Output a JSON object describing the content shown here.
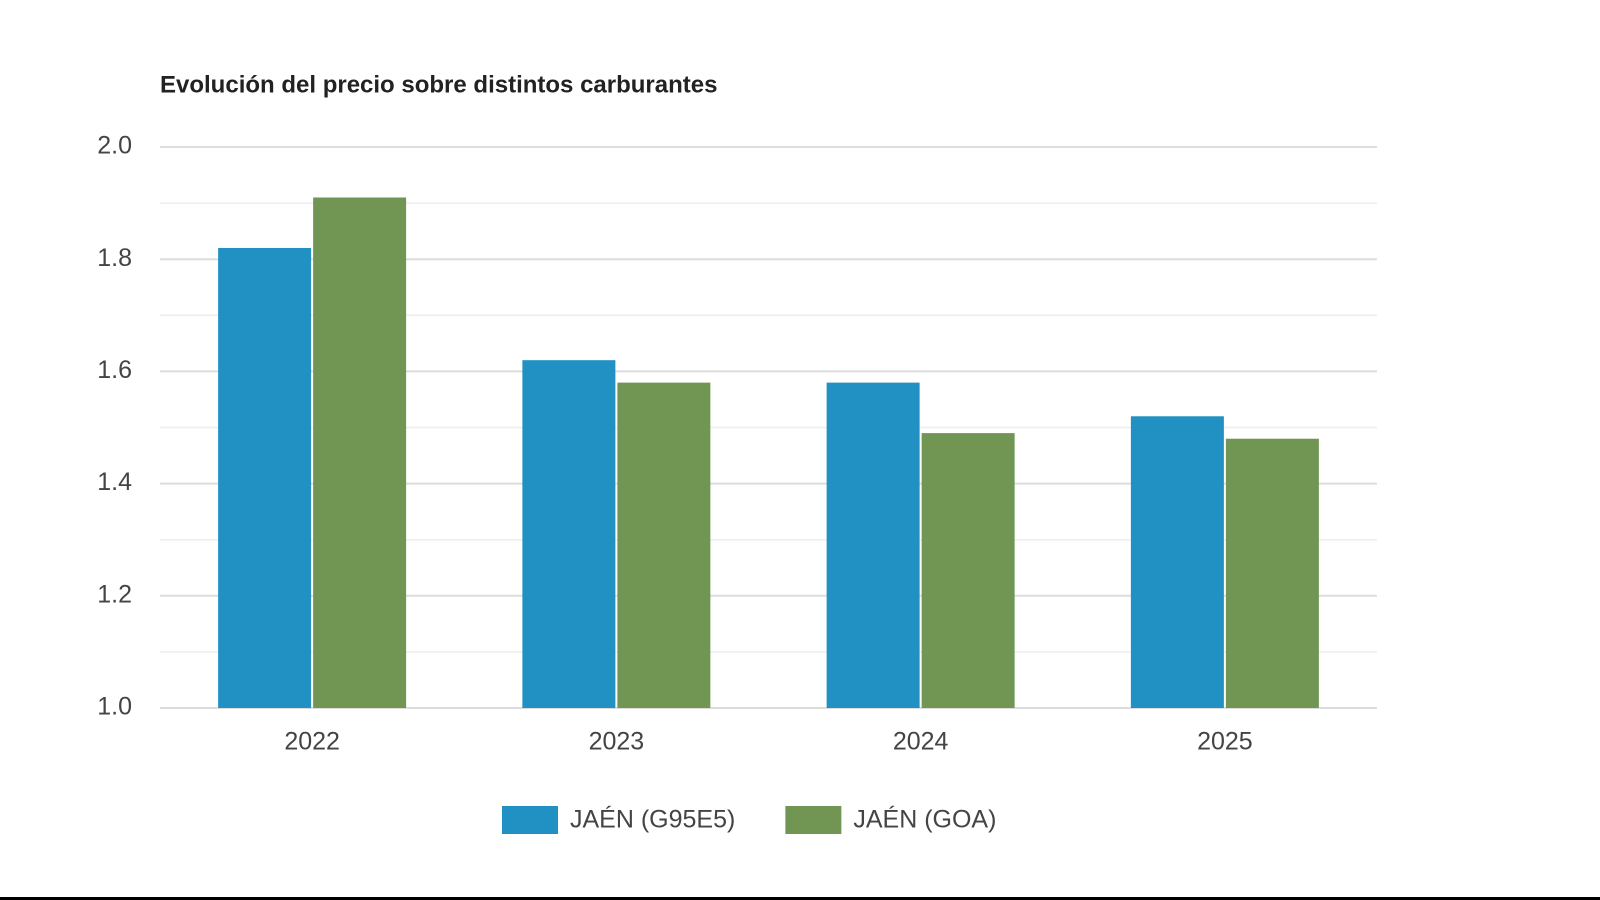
{
  "chart_data": {
    "type": "bar",
    "title": "Evolución del precio sobre distintos carburantes",
    "categories": [
      "2022",
      "2023",
      "2024",
      "2025"
    ],
    "series": [
      {
        "name": "JAÉN (G95E5)",
        "color": "#2091c2",
        "values": [
          1.82,
          1.62,
          1.58,
          1.52
        ]
      },
      {
        "name": "JAÉN (GOA)",
        "color": "#719653",
        "values": [
          1.91,
          1.58,
          1.49,
          1.48
        ]
      }
    ],
    "ylim": [
      1.0,
      2.0
    ],
    "yticks": [
      {
        "value": 1.0,
        "label": "1.0"
      },
      1.2,
      1.4,
      1.6,
      1.8,
      {
        "value": 2.0,
        "label": "2.0"
      }
    ],
    "minor_yticks": [
      1.1,
      1.3,
      1.5,
      1.7,
      1.9
    ],
    "grid": true,
    "legend": "bottom"
  }
}
